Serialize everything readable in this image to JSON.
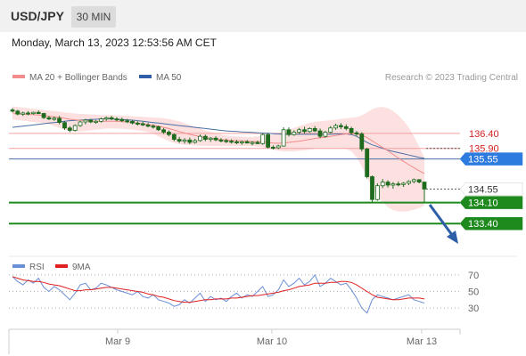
{
  "header": {
    "pair": "USD/JPY",
    "timeframe": "30 MIN"
  },
  "datetime": "Monday, March 13, 2023 12:53:56 AM CET",
  "credit": "Research © 2023 Trading Central",
  "colors": {
    "ma20": "#f28b8b",
    "ma50": "#4a6fa5",
    "bollinger_fill": "#fde0e0",
    "resistance": "#f4a0a0",
    "support": "#1e8a1e",
    "current_line": "#4a6fa5",
    "label_blue": "#2e7be0",
    "label_green": "#1e8a1e",
    "label_dark": "#333333",
    "candle_up": "#ffffff",
    "candle_down": "#1e6b1e",
    "arrow": "#2e5ea8",
    "rsi": "#6b8fd6",
    "rsi_ma": "#e02020"
  },
  "chart_data": [
    {
      "type": "line",
      "panel": "price",
      "legend": [
        {
          "name": "MA 20 + Bollinger Bands",
          "color": "#f28b8b"
        },
        {
          "name": "MA 50",
          "color": "#2e5ea8"
        }
      ],
      "legend_position": "top-left",
      "x_labels": [
        "Mar 9",
        "Mar 10",
        "Mar 13"
      ],
      "levels": [
        {
          "value": "136.40",
          "style": "resistance-text"
        },
        {
          "value": "135.90",
          "style": "resistance-text"
        },
        {
          "value": "135.55",
          "style": "blue-box"
        },
        {
          "value": "134.55",
          "style": "dark-box"
        },
        {
          "value": "134.10",
          "style": "green-box"
        },
        {
          "value": "133.40",
          "style": "green-box"
        }
      ],
      "levels_numeric": [
        136.4,
        135.9,
        135.55,
        134.55,
        134.1,
        133.4
      ],
      "ylim": [
        133.2,
        137.6
      ],
      "candles": [
        [
          137.18,
          137.24,
          137.1,
          137.14
        ],
        [
          137.14,
          137.18,
          137.0,
          137.04
        ],
        [
          137.04,
          137.12,
          136.98,
          137.08
        ],
        [
          137.08,
          137.14,
          137.0,
          137.06
        ],
        [
          137.06,
          137.12,
          137.02,
          137.1
        ],
        [
          137.1,
          137.16,
          137.04,
          137.06
        ],
        [
          137.06,
          137.08,
          136.88,
          136.92
        ],
        [
          136.92,
          136.98,
          136.84,
          136.88
        ],
        [
          136.88,
          136.96,
          136.82,
          136.9
        ],
        [
          136.9,
          136.98,
          136.7,
          136.76
        ],
        [
          136.76,
          136.8,
          136.52,
          136.58
        ],
        [
          136.58,
          136.64,
          136.44,
          136.5
        ],
        [
          136.5,
          136.7,
          136.46,
          136.66
        ],
        [
          136.66,
          136.82,
          136.62,
          136.78
        ],
        [
          136.78,
          136.88,
          136.7,
          136.84
        ],
        [
          136.84,
          136.88,
          136.74,
          136.78
        ],
        [
          136.78,
          136.84,
          136.72,
          136.8
        ],
        [
          136.8,
          136.92,
          136.76,
          136.88
        ],
        [
          136.88,
          136.96,
          136.82,
          136.92
        ],
        [
          136.92,
          136.98,
          136.84,
          136.88
        ],
        [
          136.88,
          136.94,
          136.8,
          136.86
        ],
        [
          136.86,
          136.92,
          136.78,
          136.82
        ],
        [
          136.82,
          136.88,
          136.74,
          136.8
        ],
        [
          136.8,
          136.84,
          136.7,
          136.74
        ],
        [
          136.74,
          136.8,
          136.66,
          136.72
        ],
        [
          136.72,
          136.78,
          136.64,
          136.68
        ],
        [
          136.68,
          136.74,
          136.6,
          136.64
        ],
        [
          136.64,
          136.7,
          136.56,
          136.62
        ],
        [
          136.62,
          136.66,
          136.48,
          136.52
        ],
        [
          136.52,
          136.58,
          136.38,
          136.44
        ],
        [
          136.44,
          136.5,
          136.3,
          136.36
        ],
        [
          136.36,
          136.4,
          136.14,
          136.2
        ],
        [
          136.2,
          136.28,
          136.08,
          136.14
        ],
        [
          136.14,
          136.24,
          136.06,
          136.18
        ],
        [
          136.18,
          136.26,
          136.04,
          136.1
        ],
        [
          136.1,
          136.22,
          136.06,
          136.16
        ],
        [
          136.16,
          136.36,
          136.12,
          136.3
        ],
        [
          136.3,
          136.36,
          136.14,
          136.2
        ],
        [
          136.2,
          136.28,
          136.12,
          136.24
        ],
        [
          136.24,
          136.3,
          136.14,
          136.18
        ],
        [
          136.18,
          136.24,
          136.1,
          136.16
        ],
        [
          136.16,
          136.22,
          136.08,
          136.14
        ],
        [
          136.14,
          136.2,
          136.06,
          136.12
        ],
        [
          136.12,
          136.18,
          136.04,
          136.1
        ],
        [
          136.1,
          136.16,
          136.02,
          136.12
        ],
        [
          136.12,
          136.18,
          136.06,
          136.08
        ],
        [
          136.08,
          136.14,
          136.0,
          136.1
        ],
        [
          136.1,
          136.16,
          136.04,
          136.06
        ],
        [
          136.06,
          136.4,
          136.02,
          136.36
        ],
        [
          136.36,
          136.42,
          135.9,
          135.94
        ],
        [
          135.94,
          136.0,
          135.86,
          135.92
        ],
        [
          135.92,
          136.02,
          135.88,
          135.98
        ],
        [
          135.98,
          136.6,
          135.96,
          136.52
        ],
        [
          136.52,
          136.6,
          136.3,
          136.36
        ],
        [
          136.36,
          136.5,
          136.32,
          136.44
        ],
        [
          136.44,
          136.58,
          136.38,
          136.52
        ],
        [
          136.52,
          136.62,
          136.4,
          136.46
        ],
        [
          136.46,
          136.6,
          136.42,
          136.56
        ],
        [
          136.56,
          136.64,
          136.44,
          136.48
        ],
        [
          136.48,
          136.56,
          136.24,
          136.3
        ],
        [
          136.3,
          136.48,
          136.26,
          136.44
        ],
        [
          136.44,
          136.64,
          136.4,
          136.58
        ],
        [
          136.58,
          136.72,
          136.52,
          136.66
        ],
        [
          136.66,
          136.74,
          136.54,
          136.62
        ],
        [
          136.62,
          136.7,
          136.5,
          136.56
        ],
        [
          136.56,
          136.62,
          136.36,
          136.42
        ],
        [
          136.42,
          136.48,
          136.3,
          136.38
        ],
        [
          136.38,
          136.44,
          135.8,
          135.88
        ],
        [
          135.88,
          135.92,
          134.9,
          134.96
        ],
        [
          134.96,
          135.0,
          134.12,
          134.2
        ],
        [
          134.2,
          134.74,
          134.16,
          134.66
        ],
        [
          134.66,
          134.88,
          134.58,
          134.78
        ],
        [
          134.78,
          134.84,
          134.6,
          134.68
        ],
        [
          134.68,
          134.78,
          134.56,
          134.72
        ],
        [
          134.72,
          134.8,
          134.64,
          134.7
        ],
        [
          134.7,
          134.78,
          134.62,
          134.74
        ],
        [
          134.74,
          134.84,
          134.68,
          134.8
        ],
        [
          134.8,
          134.9,
          134.74,
          134.86
        ],
        [
          134.86,
          134.88,
          134.74,
          134.78
        ],
        [
          134.78,
          134.8,
          134.12,
          134.55
        ]
      ],
      "ma20": [
        137.08,
        137.06,
        137.04,
        137.03,
        137.02,
        137.01,
        136.99,
        136.97,
        136.95,
        136.93,
        136.9,
        136.87,
        136.85,
        136.83,
        136.82,
        136.81,
        136.8,
        136.8,
        136.8,
        136.8,
        136.8,
        136.79,
        136.78,
        136.76,
        136.74,
        136.72,
        136.7,
        136.67,
        136.64,
        136.6,
        136.56,
        136.51,
        136.46,
        136.41,
        136.37,
        136.33,
        136.29,
        136.26,
        136.23,
        136.21,
        136.19,
        136.18,
        136.17,
        136.16,
        136.15,
        136.14,
        136.13,
        136.12,
        136.12,
        136.1,
        136.08,
        136.07,
        136.08,
        136.1,
        136.12,
        136.14,
        136.17,
        136.2,
        136.23,
        136.25,
        136.27,
        136.3,
        136.33,
        136.36,
        136.38,
        136.39,
        136.38,
        136.34,
        136.26,
        136.15,
        136.04,
        135.93,
        135.82,
        135.7,
        135.58,
        135.47,
        135.36,
        135.26,
        135.16,
        135.06
      ],
      "bb_upper": [
        137.3,
        137.28,
        137.26,
        137.24,
        137.22,
        137.2,
        137.18,
        137.16,
        137.14,
        137.12,
        137.1,
        137.08,
        137.06,
        137.05,
        137.04,
        137.03,
        137.02,
        137.01,
        137.01,
        137.01,
        137.0,
        136.99,
        136.98,
        136.97,
        136.96,
        136.95,
        136.94,
        136.93,
        136.92,
        136.9,
        136.88,
        136.84,
        136.8,
        136.74,
        136.68,
        136.62,
        136.56,
        136.5,
        136.45,
        136.4,
        136.36,
        136.33,
        136.31,
        136.3,
        136.29,
        136.28,
        136.28,
        136.3,
        136.32,
        136.34,
        136.36,
        136.4,
        136.46,
        136.52,
        136.58,
        136.64,
        136.7,
        136.74,
        136.78,
        136.8,
        136.82,
        136.84,
        136.86,
        136.88,
        136.9,
        136.92,
        136.94,
        137.0,
        137.1,
        137.2,
        137.26,
        137.28,
        137.24,
        137.14,
        137.0,
        136.82,
        136.6,
        136.3,
        135.95,
        135.6
      ],
      "bb_lower": [
        136.86,
        136.84,
        136.82,
        136.8,
        136.78,
        136.76,
        136.74,
        136.7,
        136.64,
        136.58,
        136.52,
        136.48,
        136.46,
        136.46,
        136.48,
        136.5,
        136.52,
        136.54,
        136.56,
        136.56,
        136.56,
        136.55,
        136.54,
        136.52,
        136.5,
        136.48,
        136.44,
        136.38,
        136.3,
        136.22,
        136.14,
        136.08,
        136.04,
        136.02,
        136.01,
        136.0,
        135.99,
        135.98,
        135.98,
        135.98,
        135.98,
        135.98,
        135.98,
        135.98,
        135.98,
        135.98,
        135.98,
        135.96,
        135.94,
        135.9,
        135.86,
        135.82,
        135.8,
        135.8,
        135.8,
        135.82,
        135.84,
        135.86,
        135.88,
        135.9,
        135.9,
        135.9,
        135.9,
        135.9,
        135.88,
        135.8,
        135.6,
        135.3,
        134.95,
        134.6,
        134.3,
        134.1,
        133.95,
        133.85,
        133.8,
        133.8,
        133.82,
        133.86,
        133.92,
        134.0
      ],
      "ma50": [
        136.6,
        136.62,
        136.64,
        136.66,
        136.68,
        136.7,
        136.72,
        136.74,
        136.76,
        136.78,
        136.8,
        136.82,
        136.83,
        136.84,
        136.85,
        136.86,
        136.87,
        136.88,
        136.88,
        136.88,
        136.87,
        136.86,
        136.85,
        136.84,
        136.82,
        136.8,
        136.78,
        136.76,
        136.74,
        136.72,
        136.7,
        136.68,
        136.66,
        136.64,
        136.62,
        136.6,
        136.58,
        136.56,
        136.54,
        136.52,
        136.5,
        136.48,
        136.47,
        136.46,
        136.45,
        136.44,
        136.43,
        136.42,
        136.41,
        136.4,
        136.39,
        136.38,
        136.37,
        136.37,
        136.37,
        136.37,
        136.37,
        136.37,
        136.37,
        136.37,
        136.37,
        136.37,
        136.38,
        136.38,
        136.38,
        136.36,
        136.3,
        136.2,
        136.1,
        136.02,
        135.96,
        135.9,
        135.84,
        135.8,
        135.76,
        135.72,
        135.68,
        135.64,
        135.6,
        135.57
      ]
    },
    {
      "type": "line",
      "panel": "indicator",
      "legend": [
        {
          "name": "RSI",
          "color": "#6b8fd6"
        },
        {
          "name": "9MA",
          "color": "#e02020"
        }
      ],
      "legend_position": "top-left",
      "ylim": [
        20,
        80
      ],
      "y_ticks": [
        70,
        50,
        30
      ],
      "rsi": [
        68,
        62,
        58,
        64,
        60,
        66,
        55,
        50,
        56,
        52,
        46,
        40,
        48,
        58,
        60,
        52,
        54,
        60,
        58,
        55,
        52,
        50,
        48,
        46,
        50,
        44,
        42,
        46,
        40,
        38,
        36,
        32,
        34,
        40,
        36,
        42,
        48,
        38,
        44,
        40,
        42,
        38,
        44,
        48,
        42,
        46,
        44,
        50,
        56,
        44,
        46,
        52,
        64,
        56,
        60,
        66,
        58,
        62,
        70,
        56,
        60,
        66,
        62,
        58,
        60,
        52,
        42,
        30,
        24,
        40,
        46,
        44,
        42,
        40,
        42,
        44,
        46,
        40,
        38,
        36
      ],
      "rsi_ma": [
        68,
        66,
        64,
        63,
        62,
        62,
        61,
        59,
        58,
        57,
        55,
        53,
        51,
        51,
        52,
        52,
        53,
        54,
        55,
        55,
        54,
        53,
        52,
        51,
        50,
        49,
        47,
        46,
        44,
        43,
        41,
        39,
        38,
        37,
        37,
        38,
        39,
        40,
        40,
        41,
        41,
        41,
        42,
        42,
        43,
        44,
        45,
        45,
        46,
        47,
        48,
        49,
        51,
        52,
        54,
        56,
        57,
        58,
        60,
        60,
        60,
        61,
        61,
        62,
        62,
        61,
        58,
        54,
        50,
        46,
        43,
        42,
        41,
        40,
        40,
        41,
        42,
        42,
        42,
        41
      ]
    }
  ]
}
